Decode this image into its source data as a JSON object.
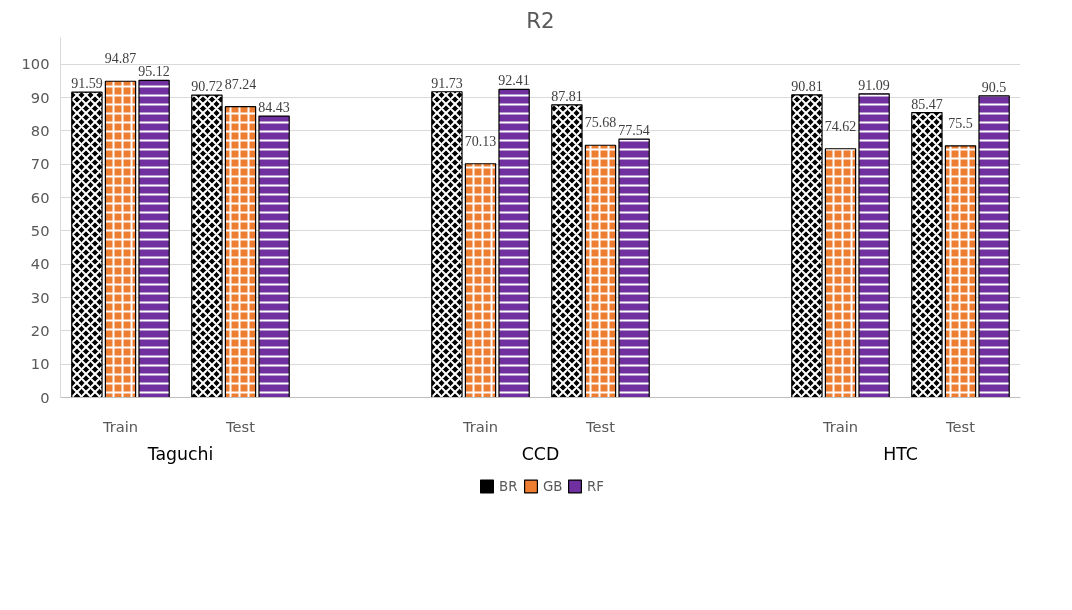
{
  "chart_data": {
    "type": "bar",
    "title": "R2",
    "categories": [
      "Train",
      "Test",
      "Train",
      "Test",
      "Train",
      "Test"
    ],
    "series": [
      {
        "name": "BR",
        "color": "#000000",
        "values": [
          91.59,
          90.72,
          91.73,
          87.81,
          90.81,
          85.47
        ]
      },
      {
        "name": "GB",
        "color": "#ed7d31",
        "values": [
          94.87,
          87.24,
          70.13,
          75.68,
          74.62,
          75.5
        ]
      },
      {
        "name": "RF",
        "color": "#7030a0",
        "values": [
          95.12,
          84.43,
          92.41,
          77.54,
          91.09,
          90.5
        ]
      }
    ],
    "annotations": [
      "Taguchi",
      "CCD",
      "HTC"
    ],
    "ylim": [
      0,
      108
    ],
    "yticks": [
      0,
      10,
      20,
      30,
      40,
      50,
      60,
      70,
      80,
      90,
      100
    ],
    "grid": "y",
    "legend": "bottom",
    "data_labels": true
  }
}
